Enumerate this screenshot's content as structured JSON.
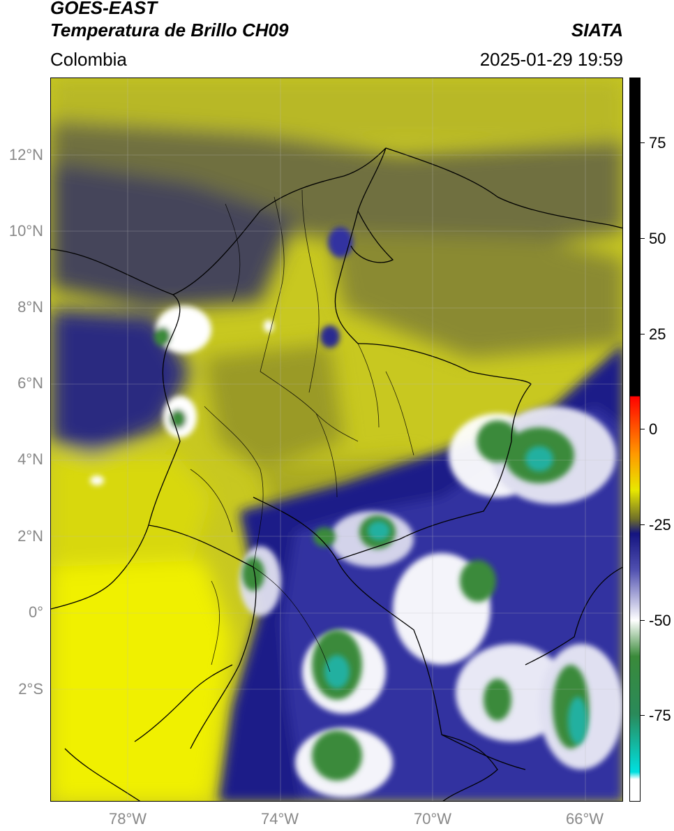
{
  "header": {
    "satellite": "GOES-EAST",
    "product": "Temperatura de Brillo CH09",
    "region": "Colombia",
    "agency": "SIATA",
    "datetime": "2025-01-29 19:59"
  },
  "map": {
    "lat_ticks": [
      "12°N",
      "10°N",
      "8°N",
      "6°N",
      "4°N",
      "2°N",
      "0°",
      "2°S"
    ],
    "lon_ticks": [
      "78°W",
      "74°W",
      "70°W",
      "66°W"
    ],
    "colors": {
      "warm_yellow": "#f2f200",
      "olive": "#8a8a2a",
      "slate": "#4a4a60",
      "navy": "#1a1a8a",
      "white": "#ffffff",
      "green": "#3a8a3a",
      "teal": "#20b0a0",
      "border": "#000000"
    }
  },
  "colorbar": {
    "ticks": [
      "75",
      "50",
      "25",
      "0",
      "-25",
      "-50",
      "-75"
    ],
    "colors": {
      "black": "#000000",
      "red": "#ff0000",
      "orange": "#ff9900",
      "yellow": "#e8e800",
      "olive": "#6f6f2a",
      "navy": "#141480",
      "white": "#ffffff",
      "green": "#3a8a3a",
      "cyan": "#00e0e0"
    }
  }
}
